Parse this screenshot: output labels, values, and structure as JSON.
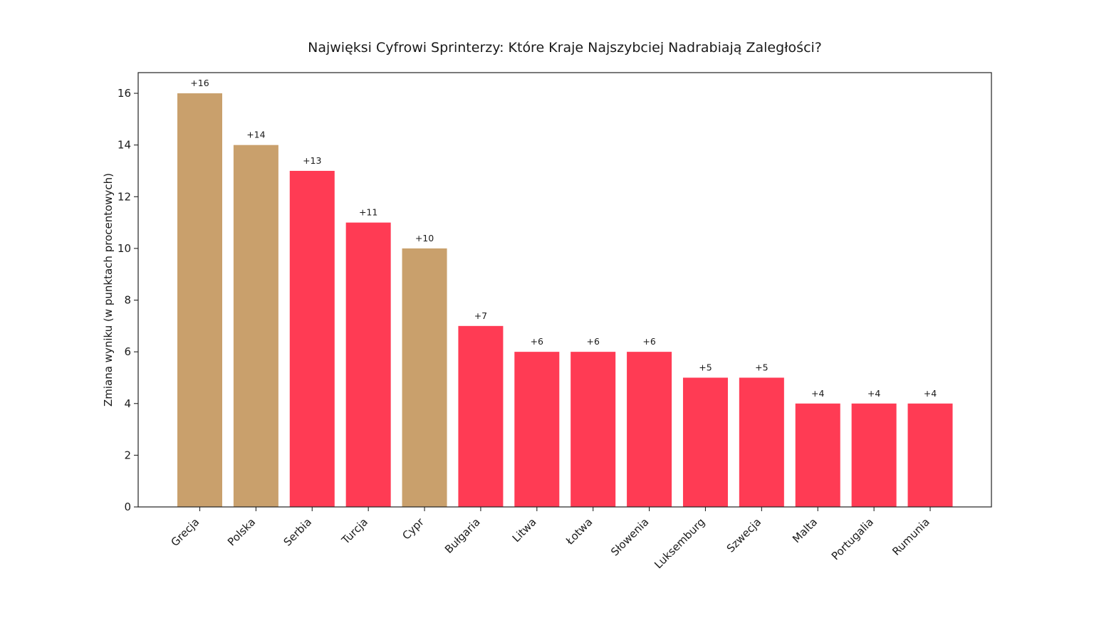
{
  "chart_data": {
    "type": "bar",
    "title": "Najwięksi Cyfrowi Sprinterzy: Które Kraje Najszybciej Nadrabiają Zaległości?",
    "xlabel": "",
    "ylabel": "Zmiana wyniku (w punktach procentowych)",
    "ylim": [
      0,
      16.8
    ],
    "yticks": [
      0,
      2,
      4,
      6,
      8,
      10,
      12,
      14,
      16
    ],
    "grid": false,
    "legend": "none",
    "categories": [
      "Grecja",
      "Polska",
      "Serbia",
      "Turcja",
      "Cypr",
      "Bułgaria",
      "Litwa",
      "Łotwa",
      "Słowenia",
      "Luksemburg",
      "Szwecja",
      "Malta",
      "Portugalia",
      "Rumunia"
    ],
    "values": [
      16,
      14,
      13,
      11,
      10,
      7,
      6,
      6,
      6,
      5,
      5,
      4,
      4,
      4
    ],
    "data_labels": [
      "+16",
      "+14",
      "+13",
      "+11",
      "+10",
      "+7",
      "+6",
      "+6",
      "+6",
      "+5",
      "+5",
      "+4",
      "+4",
      "+4"
    ],
    "bar_colors": [
      "#c9a06c",
      "#c9a06c",
      "#ff3b54",
      "#ff3b54",
      "#c9a06c",
      "#ff3b54",
      "#ff3b54",
      "#ff3b54",
      "#ff3b54",
      "#ff3b54",
      "#ff3b54",
      "#ff3b54",
      "#ff3b54",
      "#ff3b54"
    ]
  }
}
